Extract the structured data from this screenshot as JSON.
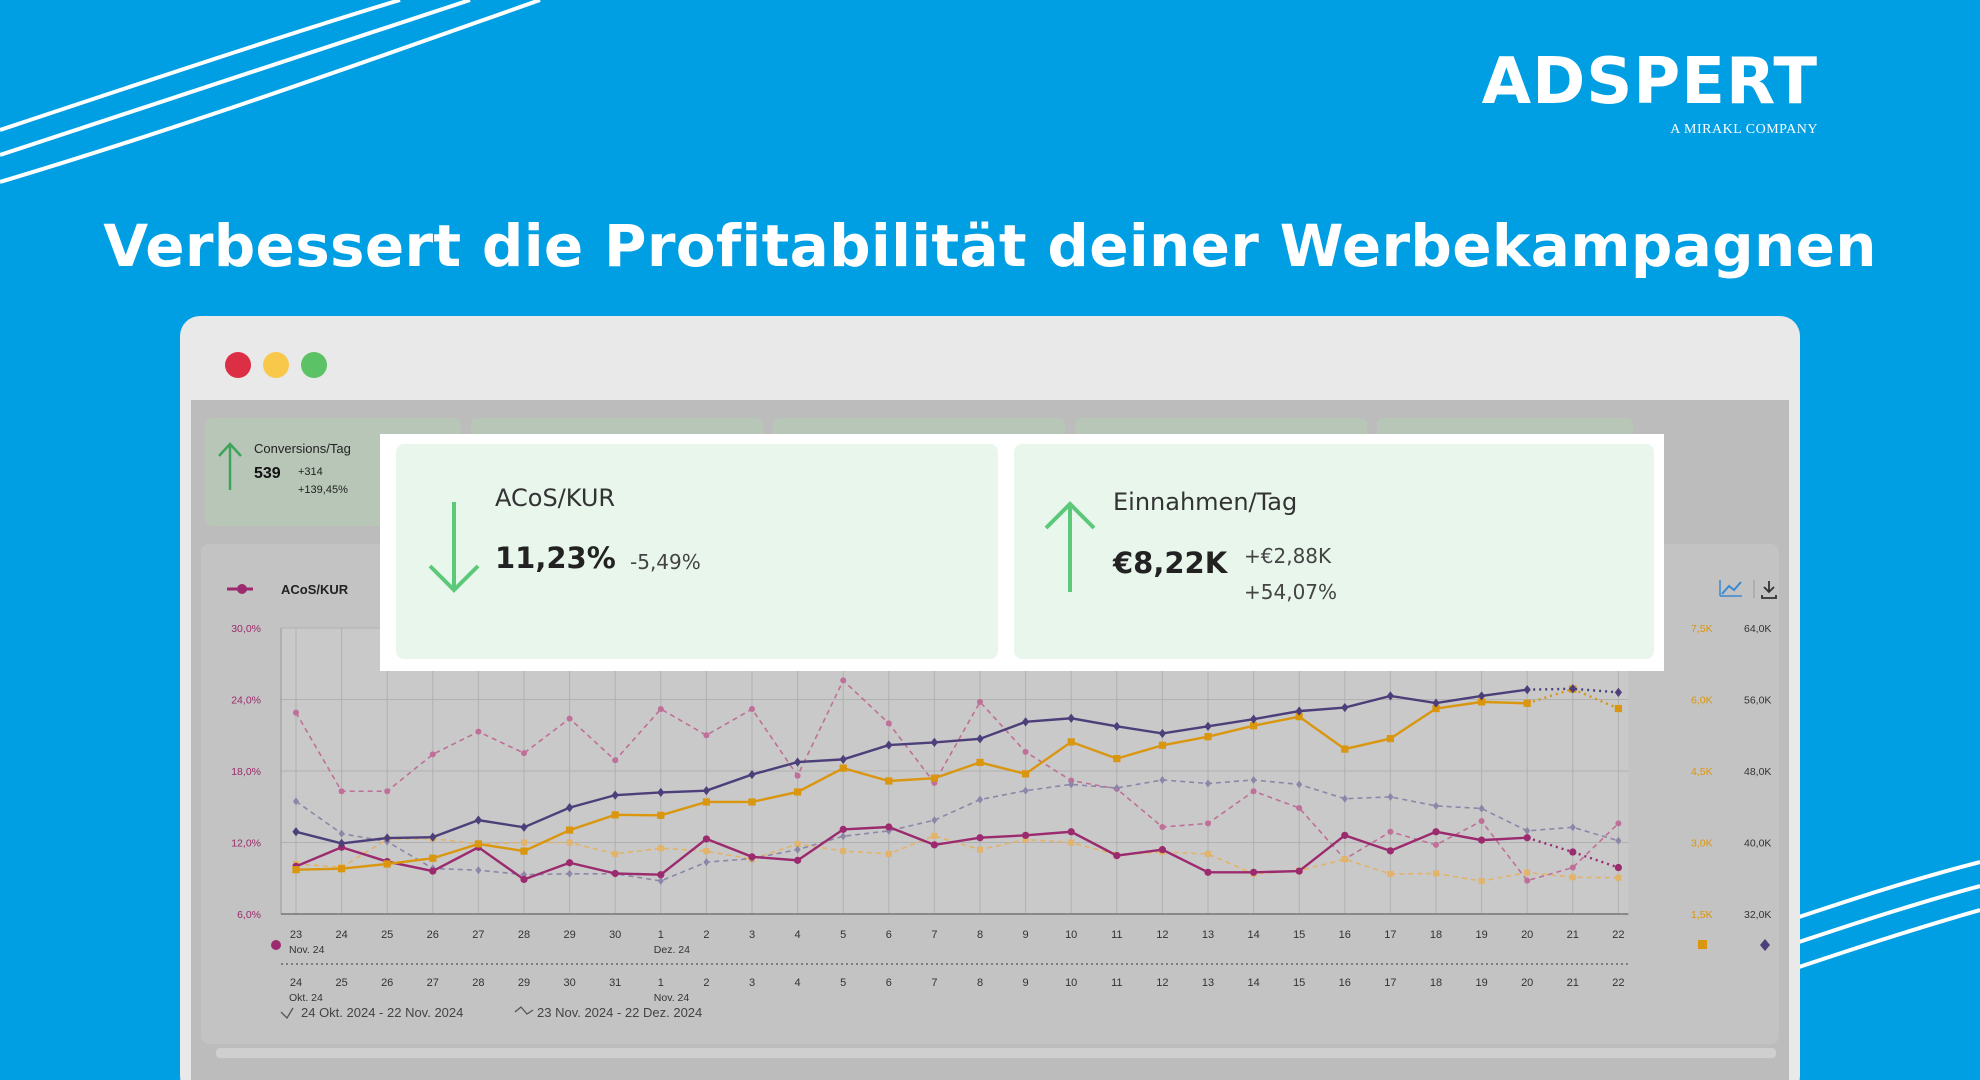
{
  "brand": {
    "name": "ADSPERT",
    "tagline": "A MIRAKL COMPANY"
  },
  "headline": "Verbessert die Profitabilität deiner Werbekampagnen",
  "colors": {
    "background": "#009ee3",
    "acos": "#9b2a6e",
    "revenue": "#d9960e",
    "conversions": "#4c3f7a",
    "positive": "#5cc87a"
  },
  "kpi_small": {
    "label": "Conversions/Tag",
    "value": "539",
    "delta_abs": "+314",
    "delta_pct": "+139,45%"
  },
  "cards": [
    {
      "label": "ACoS/KUR",
      "value": "11,23%",
      "delta": "-5,49%",
      "direction": "down"
    },
    {
      "label": "Einnahmen/Tag",
      "value": "€8,22K",
      "delta_abs": "+€2,88K",
      "delta_pct": "+54,07%",
      "direction": "up"
    }
  ],
  "chart_data": {
    "type": "line",
    "legend": {
      "label": "ACoS/KUR"
    },
    "y_left": {
      "ticks": [
        "30,0%",
        "24,0%",
        "18,0%",
        "12,0%",
        "6,0%"
      ],
      "range": [
        6,
        30
      ]
    },
    "y_right1": {
      "ticks": [
        "7,5K",
        "6,0K",
        "4,5K",
        "3,0K",
        "1,5K"
      ],
      "range": [
        1.5,
        7.5
      ]
    },
    "y_right2": {
      "ticks": [
        "64,0K",
        "56,0K",
        "48,0K",
        "40,0K",
        "32,0K"
      ],
      "range": [
        32,
        64
      ]
    },
    "x_current": [
      "23",
      "24",
      "25",
      "26",
      "27",
      "28",
      "29",
      "30",
      "1",
      "2",
      "3",
      "4",
      "5",
      "6",
      "7",
      "8",
      "9",
      "10",
      "11",
      "12",
      "13",
      "14",
      "15",
      "16",
      "17",
      "18",
      "19",
      "20",
      "21",
      "22"
    ],
    "x_current_months": [
      {
        "index": 0,
        "label": "Nov. 24"
      },
      {
        "index": 8,
        "label": "Dez. 24"
      }
    ],
    "x_previous": [
      "24",
      "25",
      "26",
      "27",
      "28",
      "29",
      "30",
      "31",
      "1",
      "2",
      "3",
      "4",
      "5",
      "6",
      "7",
      "8",
      "9",
      "10",
      "11",
      "12",
      "13",
      "14",
      "15",
      "16",
      "17",
      "18",
      "19",
      "20",
      "21",
      "22"
    ],
    "x_previous_months": [
      {
        "index": 0,
        "label": "Okt. 24"
      },
      {
        "index": 8,
        "label": "Nov. 24"
      }
    ],
    "periods": [
      "24 Okt. 2024 - 22 Nov. 2024",
      "23 Nov. 2024 - 22 Dez. 2024"
    ],
    "series": [
      {
        "name": "ACoS/KUR",
        "axis": "left",
        "period": "current",
        "values": [
          10.0,
          11.6,
          10.4,
          9.6,
          11.6,
          8.9,
          10.3,
          9.4,
          9.3,
          12.3,
          10.8,
          10.5,
          13.1,
          13.3,
          11.8,
          12.4,
          12.6,
          12.9,
          10.9,
          11.4,
          9.5,
          9.5,
          9.6,
          12.6,
          11.3,
          12.9,
          12.2,
          12.4,
          11.2,
          9.9
        ]
      },
      {
        "name": "ACoS/KUR",
        "axis": "left",
        "period": "previous",
        "values": [
          22.9,
          16.3,
          16.3,
          19.4,
          21.3,
          19.5,
          22.4,
          18.9,
          23.2,
          21.0,
          23.2,
          17.6,
          25.6,
          22.0,
          17.0,
          23.8,
          19.6,
          17.2,
          16.5,
          13.3,
          13.6,
          16.3,
          14.9,
          10.6,
          12.9,
          11.8,
          13.8,
          8.8,
          9.9,
          13.6
        ]
      },
      {
        "name": "Einnahmen/Tag",
        "axis": "right1",
        "period": "current",
        "values": [
          2.43,
          2.45,
          2.55,
          2.67,
          2.97,
          2.82,
          3.26,
          3.58,
          3.57,
          3.85,
          3.85,
          4.06,
          4.56,
          4.29,
          4.35,
          4.68,
          4.44,
          5.11,
          4.76,
          5.04,
          5.22,
          5.45,
          5.64,
          4.96,
          5.18,
          5.81,
          5.95,
          5.92,
          6.22,
          5.81
        ]
      },
      {
        "name": "Einnahmen/Tag",
        "axis": "right1",
        "period": "previous",
        "values": [
          2.55,
          2.48,
          3.07,
          3.08,
          2.97,
          3.0,
          3.0,
          2.76,
          2.88,
          2.82,
          2.65,
          2.97,
          2.82,
          2.76,
          3.14,
          2.85,
          3.06,
          3.0,
          2.74,
          2.8,
          2.76,
          2.34,
          2.41,
          2.65,
          2.34,
          2.35,
          2.19,
          2.37,
          2.27,
          2.26
        ]
      },
      {
        "name": "Conversions/Tag",
        "axis": "right2",
        "period": "current",
        "values": [
          41.2,
          39.9,
          40.5,
          40.6,
          42.5,
          41.7,
          43.9,
          45.3,
          45.6,
          45.8,
          47.6,
          49.0,
          49.3,
          50.9,
          51.2,
          51.6,
          53.5,
          53.9,
          53.0,
          52.2,
          53.0,
          53.8,
          54.7,
          55.1,
          56.4,
          55.6,
          56.4,
          57.1,
          57.2,
          56.8
        ]
      },
      {
        "name": "Conversions/Tag",
        "axis": "right2",
        "period": "previous",
        "values": [
          44.6,
          41.0,
          40.1,
          37.1,
          36.9,
          36.4,
          36.5,
          36.5,
          35.7,
          37.8,
          38.2,
          39.2,
          40.7,
          41.3,
          42.5,
          44.8,
          45.8,
          46.5,
          46.1,
          47.0,
          46.6,
          47.0,
          46.5,
          44.9,
          45.1,
          44.1,
          43.8,
          41.3,
          41.7,
          40.2
        ]
      }
    ]
  }
}
